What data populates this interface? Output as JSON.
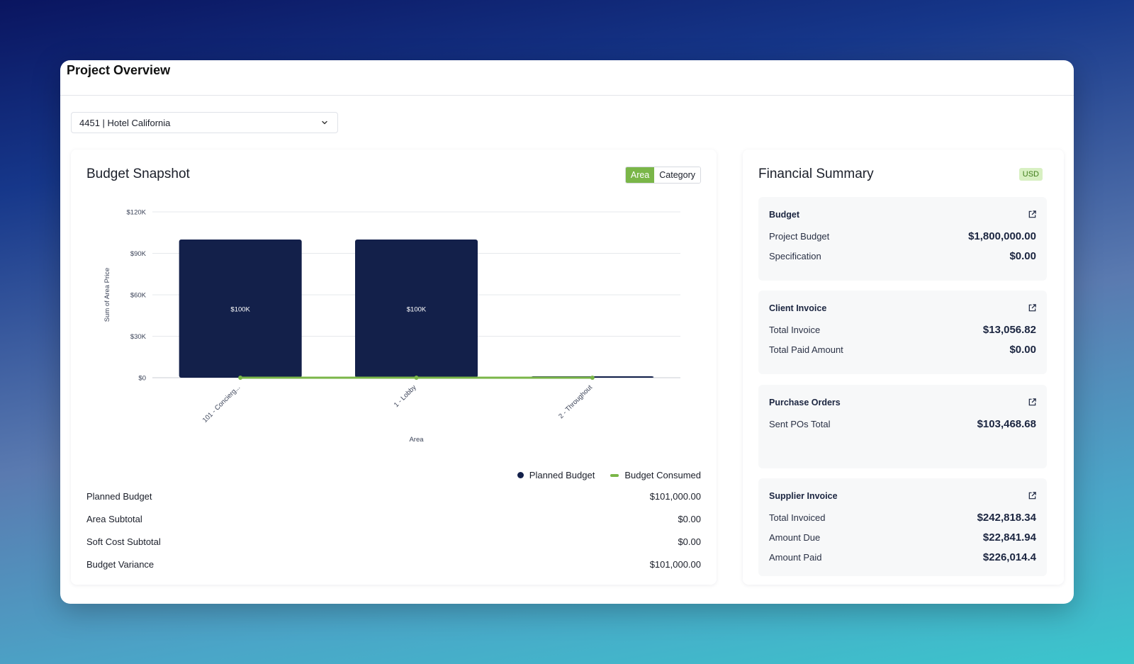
{
  "page": {
    "title": "Project Overview"
  },
  "project_select": {
    "value": "4451 | Hotel California"
  },
  "budget_snapshot": {
    "title": "Budget Snapshot",
    "toggle": {
      "area_label": "Area",
      "category_label": "Category",
      "active": "Area"
    },
    "summary": [
      {
        "label": "Planned Budget",
        "value": "$101,000.00"
      },
      {
        "label": "Area Subtotal",
        "value": "$0.00"
      },
      {
        "label": "Soft Cost Subtotal",
        "value": "$0.00"
      },
      {
        "label": "Budget Variance",
        "value": "$101,000.00"
      }
    ]
  },
  "chart_data": {
    "type": "bar",
    "categories": [
      "101 - Concierg...",
      "1 - Lobby",
      "2 - Throughout"
    ],
    "series": [
      {
        "name": "Planned Budget",
        "type": "bar",
        "values": [
          100000,
          100000,
          1000
        ],
        "color": "#13204a"
      },
      {
        "name": "Budget Consumed",
        "type": "line",
        "values": [
          0,
          0,
          0
        ],
        "color": "#7ab648"
      }
    ],
    "data_labels": [
      "$100K",
      "$100K",
      ""
    ],
    "xlabel": "Area",
    "ylabel": "Sum of Area Price",
    "yticks": [
      "$0",
      "$30K",
      "$60K",
      "$90K",
      "$120K"
    ],
    "ylim": [
      0,
      120000
    ],
    "grid": true,
    "legend": "bottom-right"
  },
  "financial_summary": {
    "title": "Financial Summary",
    "currency": "USD",
    "cards": [
      {
        "title": "Budget",
        "rows": [
          {
            "label": "Project Budget",
            "value": "$1,800,000.00"
          },
          {
            "label": "Specification",
            "value": "$0.00"
          }
        ]
      },
      {
        "title": "Client Invoice",
        "rows": [
          {
            "label": "Total Invoice",
            "value": "$13,056.82"
          },
          {
            "label": "Total Paid Amount",
            "value": "$0.00"
          }
        ]
      },
      {
        "title": "Purchase Orders",
        "rows": [
          {
            "label": "Sent POs Total",
            "value": "$103,468.68"
          }
        ]
      },
      {
        "title": "Supplier Invoice",
        "rows": [
          {
            "label": "Total Invoiced",
            "value": "$242,818.34"
          },
          {
            "label": "Amount Due",
            "value": "$22,841.94"
          },
          {
            "label": "Amount Paid",
            "value": "$226,014.4"
          }
        ]
      }
    ]
  },
  "icons": {
    "dropdown": "chevron-down-icon",
    "external": "external-link-icon"
  }
}
